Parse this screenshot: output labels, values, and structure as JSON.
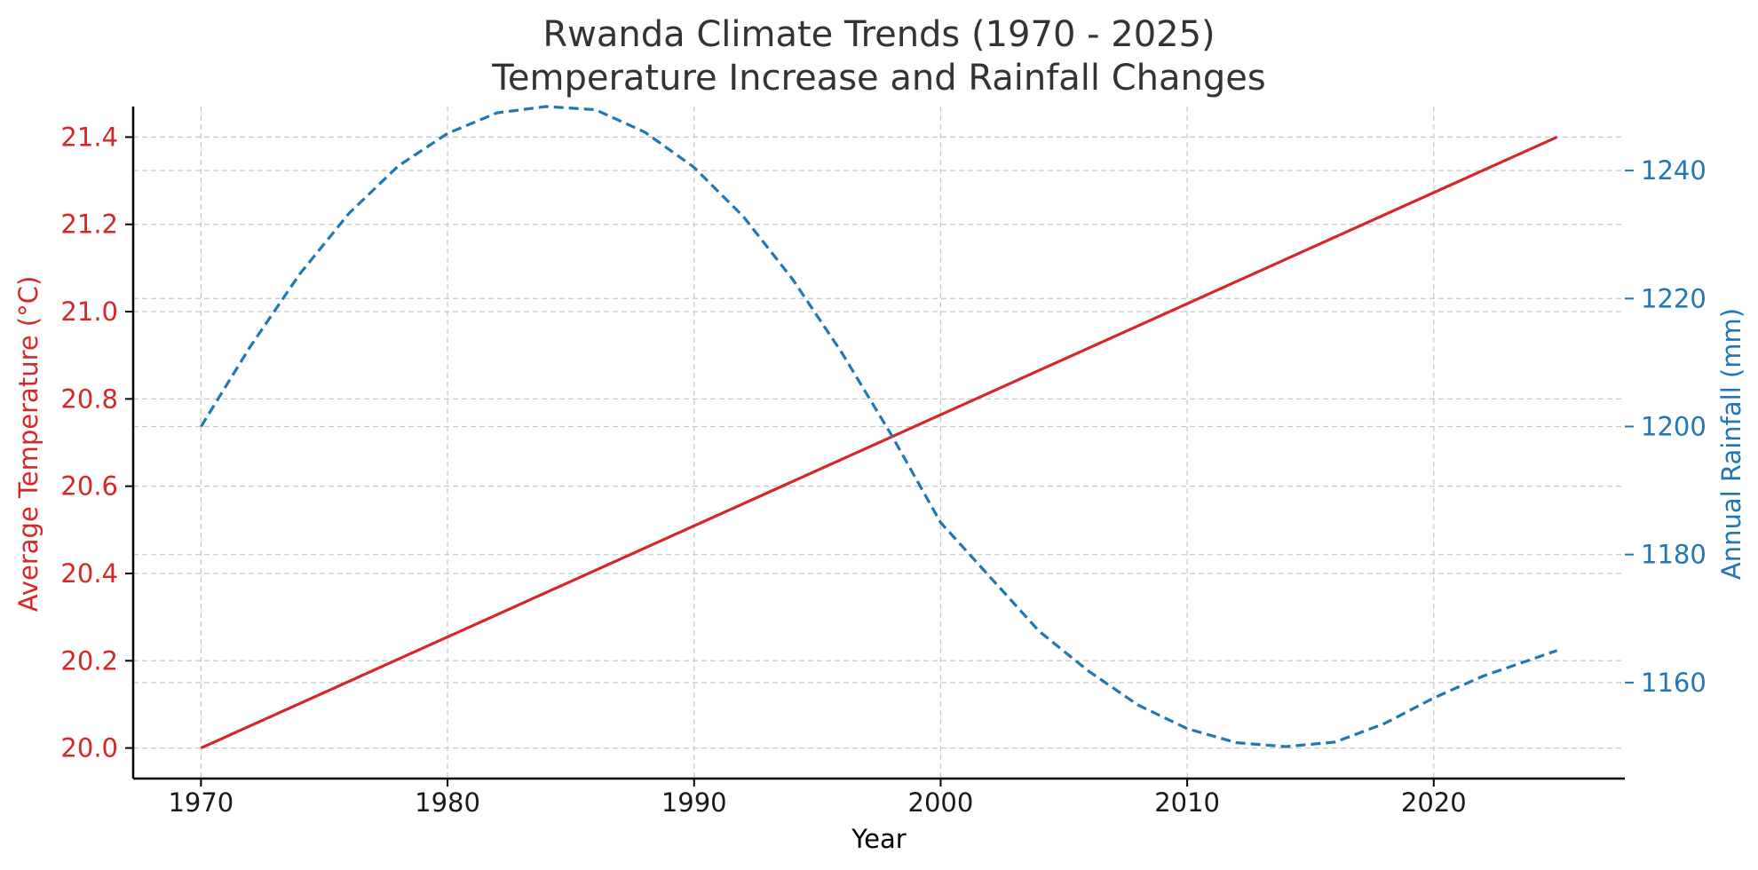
{
  "colors": {
    "temperature": "#d62728",
    "rainfall": "#1f77b4",
    "title": "#333333",
    "axis": "#000000",
    "grid": "#c8c8c8"
  },
  "chart_data": {
    "type": "line",
    "title": "Rwanda Climate Trends (1970 - 2025)",
    "subtitle": "Temperature Increase and Rainfall Changes",
    "xlabel": "Year",
    "ylabel_left": "Average Temperature (°C)",
    "ylabel_right": "Annual Rainfall (mm)",
    "xlim": [
      1967.25,
      2027.75
    ],
    "ylim_left": [
      19.93,
      21.47
    ],
    "ylim_right": [
      1145,
      1250
    ],
    "x_ticks": [
      1970,
      1980,
      1990,
      2000,
      2010,
      2020
    ],
    "y_left_ticks": [
      "20.0",
      "20.2",
      "20.4",
      "20.6",
      "20.8",
      "21.0",
      "21.2",
      "21.4"
    ],
    "y_right_ticks": [
      "1160",
      "1180",
      "1200",
      "1220",
      "1240"
    ],
    "grid": true,
    "legend": "none",
    "series": [
      {
        "axis": "left",
        "style": "solid",
        "x": [
          1970,
          2025
        ],
        "values": [
          20.0,
          21.4
        ]
      },
      {
        "axis": "right",
        "style": "dashed",
        "x": [
          1970,
          1972,
          1974,
          1976,
          1978,
          1980,
          1982,
          1984,
          1986,
          1988,
          1990,
          1992,
          1994,
          1996,
          1998,
          2000,
          2002,
          2004,
          2006,
          2008,
          2010,
          2012,
          2014,
          2016,
          2018,
          2020,
          2022,
          2025
        ],
        "values": [
          1200,
          1212.5,
          1223.8,
          1233.3,
          1240.7,
          1245.8,
          1249.0,
          1250.0,
          1249.5,
          1246.0,
          1240.5,
          1232.8,
          1223.0,
          1211.5,
          1198.7,
          1185.0,
          1176.5,
          1168.0,
          1161.8,
          1156.5,
          1152.8,
          1150.6,
          1150.0,
          1150.7,
          1153.6,
          1157.6,
          1161.0,
          1165.0
        ]
      }
    ]
  }
}
